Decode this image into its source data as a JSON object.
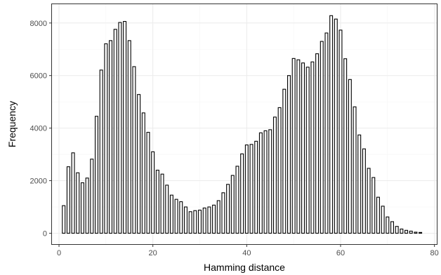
{
  "chart_data": {
    "type": "bar",
    "xlabel": "Hamming distance",
    "ylabel": "Frequency",
    "xlim": [
      -1.5,
      80.5
    ],
    "ylim": [
      -415,
      8715
    ],
    "x_ticks": [
      0,
      20,
      40,
      60,
      80
    ],
    "y_ticks": [
      0,
      2000,
      4000,
      6000,
      8000
    ],
    "grid": true,
    "bar_fill": "#ffffff",
    "bar_stroke": "#000000",
    "panel_border": "#333333",
    "grid_major_color": "#ebebeb",
    "grid_minor_color": "#f5f5f5",
    "x": [
      1,
      2,
      3,
      4,
      5,
      6,
      7,
      8,
      9,
      10,
      11,
      12,
      13,
      14,
      15,
      16,
      17,
      18,
      19,
      20,
      21,
      22,
      23,
      24,
      25,
      26,
      27,
      28,
      29,
      30,
      31,
      32,
      33,
      34,
      35,
      36,
      37,
      38,
      39,
      40,
      41,
      42,
      43,
      44,
      45,
      46,
      47,
      48,
      49,
      50,
      51,
      52,
      53,
      54,
      55,
      56,
      57,
      58,
      59,
      60,
      61,
      62,
      63,
      64,
      65,
      66,
      67,
      68,
      69,
      70,
      71,
      72,
      73,
      74,
      75,
      76,
      77
    ],
    "values": [
      1050,
      2530,
      3060,
      2300,
      1920,
      2100,
      2820,
      4450,
      6210,
      7210,
      7330,
      7760,
      8020,
      8060,
      7330,
      6340,
      5280,
      4580,
      3840,
      3100,
      2400,
      2250,
      1830,
      1450,
      1290,
      1200,
      1000,
      820,
      860,
      880,
      960,
      1000,
      1070,
      1240,
      1540,
      1860,
      2200,
      2550,
      3020,
      3360,
      3380,
      3500,
      3820,
      3900,
      3940,
      4420,
      4780,
      5480,
      6000,
      6650,
      6600,
      6480,
      6320,
      6520,
      6830,
      7300,
      7620,
      8280,
      8150,
      7730,
      6640,
      5850,
      4810,
      3740,
      3210,
      2470,
      2120,
      1370,
      1030,
      620,
      440,
      260,
      160,
      110,
      80,
      40,
      30
    ]
  }
}
